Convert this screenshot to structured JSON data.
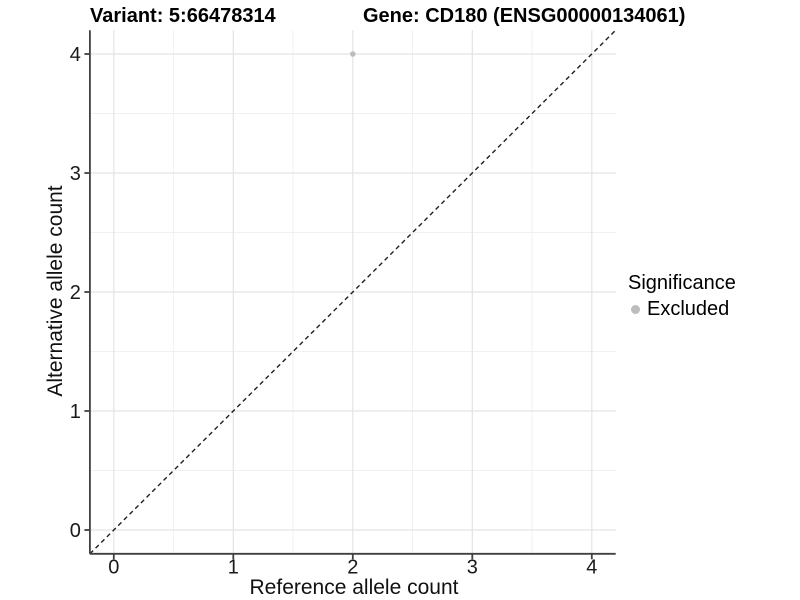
{
  "titles": {
    "variant": "Variant: 5:66478314",
    "gene": "Gene: CD180 (ENSG00000134061)"
  },
  "chart_data": {
    "type": "scatter",
    "xlabel": "Reference allele count",
    "ylabel": "Alternative allele count",
    "xlim": [
      -0.2,
      4.2
    ],
    "ylim": [
      -0.2,
      4.2
    ],
    "x_ticks": [
      0,
      1,
      2,
      3,
      4
    ],
    "y_ticks": [
      0,
      1,
      2,
      3,
      4
    ],
    "x_minor_ticks": [
      0.5,
      1.5,
      2.5,
      3.5
    ],
    "y_minor_ticks": [
      0.5,
      1.5,
      2.5,
      3.5
    ],
    "grid": true,
    "points": [
      {
        "x": 2,
        "y": 4,
        "significance": "Excluded"
      }
    ],
    "identity_line": {
      "style": "dashed",
      "from": [
        -0.2,
        -0.2
      ],
      "to": [
        4.2,
        4.2
      ]
    },
    "legend": {
      "title": "Significance",
      "position": "right",
      "entries": [
        {
          "label": "Excluded",
          "color": "#bdbdbd"
        }
      ]
    }
  },
  "colors": {
    "background": "#ffffff",
    "grid_major": "#e4e4e4",
    "grid_minor": "#f1f1f1",
    "axis_line": "#404040",
    "tick_text": "#1a1a1a",
    "identity_line": "#1f1f1f",
    "point": "#bdbdbd"
  }
}
